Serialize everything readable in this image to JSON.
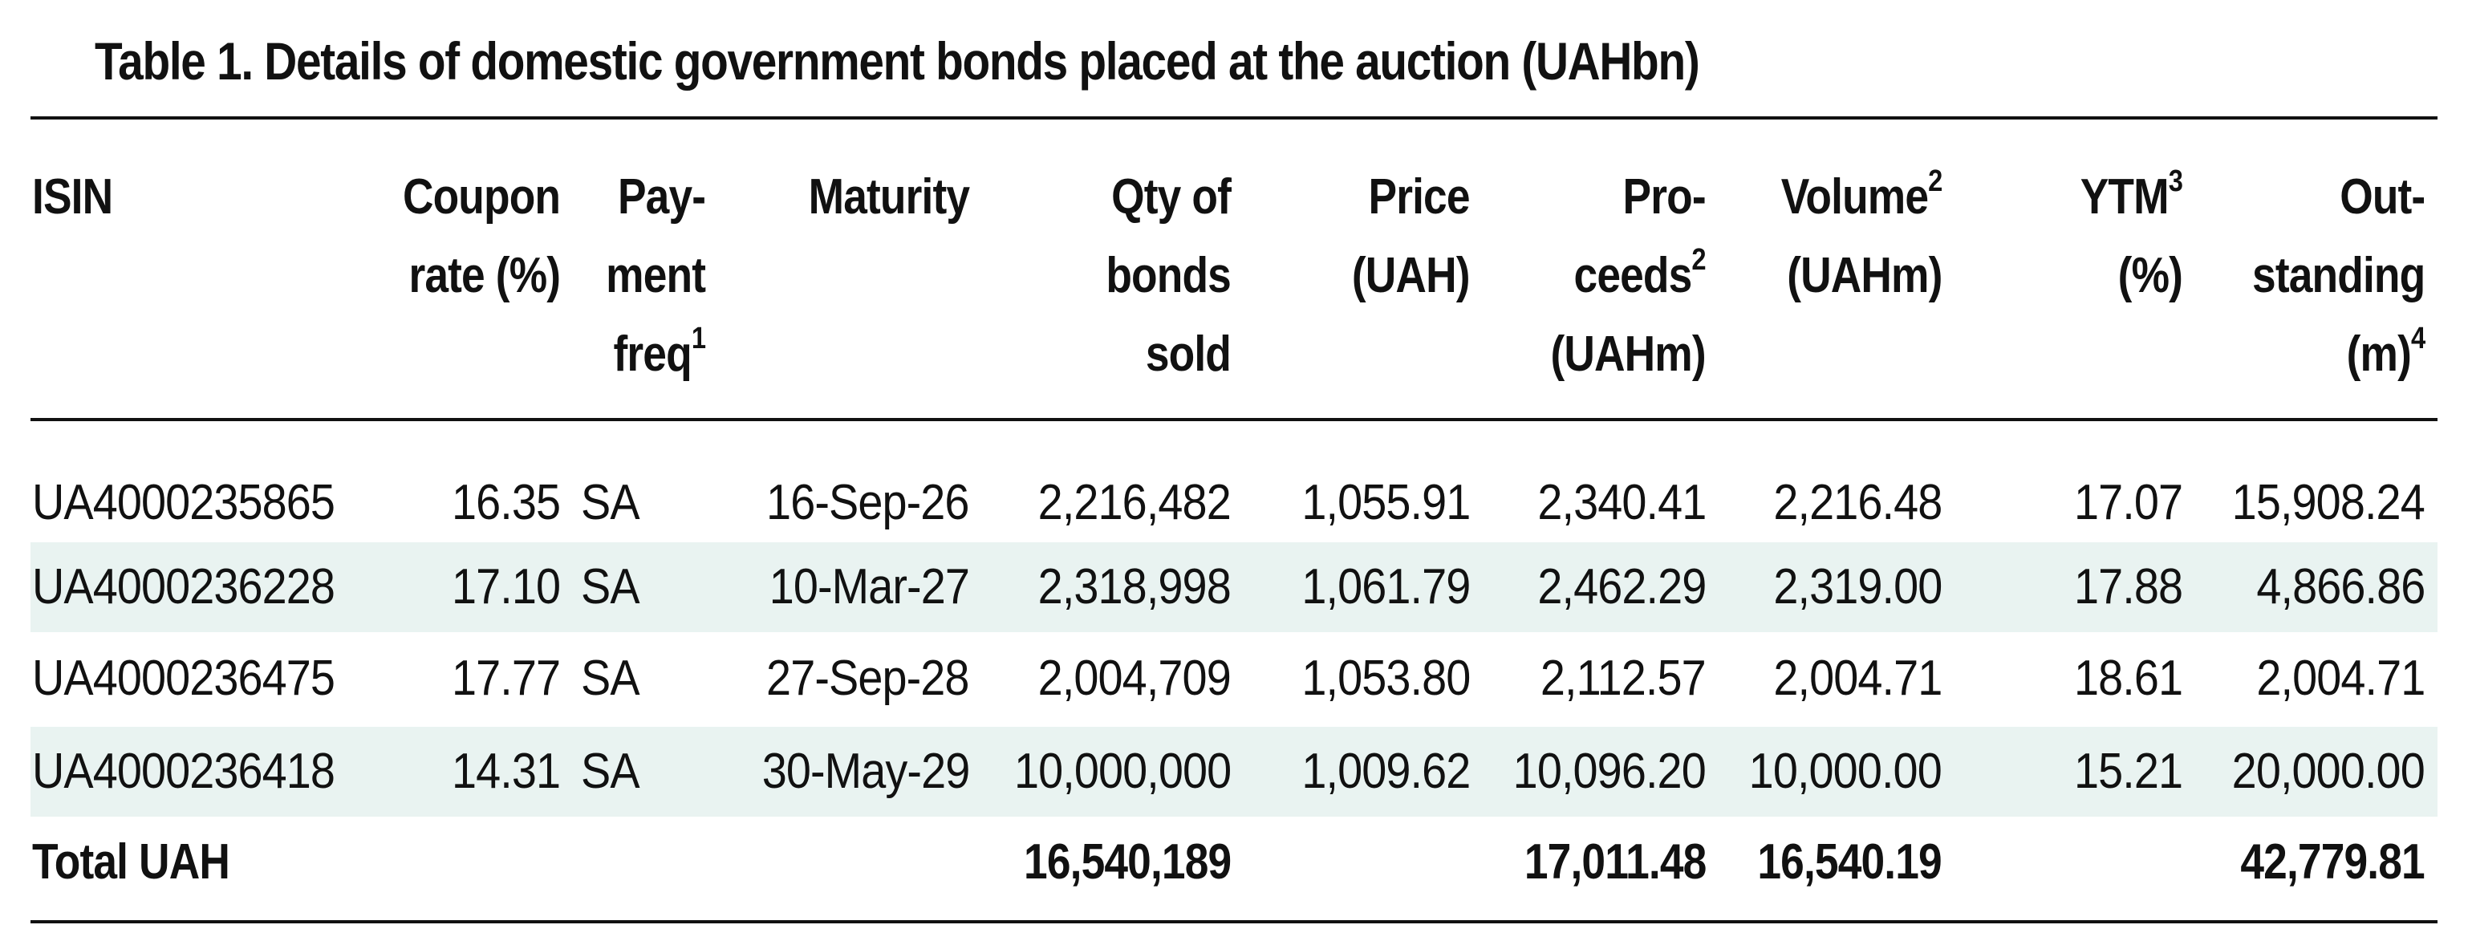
{
  "title": "Table 1. Details of domestic government bonds placed at the auction (UAHbn)",
  "headers": {
    "isin": [
      "ISIN"
    ],
    "coupon": [
      "Coupon",
      "rate (%)"
    ],
    "freq": [
      "Pay-",
      "ment",
      "freq",
      "1"
    ],
    "maturity": [
      "Maturity"
    ],
    "qty": [
      "Qty of",
      "bonds",
      "sold"
    ],
    "price": [
      "Price",
      "(UAH)"
    ],
    "proceeds": [
      "Pro-",
      "ceeds",
      "2",
      "(UAHm)"
    ],
    "volume": [
      "Volume",
      "2",
      "(UAHm)"
    ],
    "ytm": [
      "YTM",
      "3",
      "(%)"
    ],
    "outstanding": [
      "Out-",
      "standing",
      "(m)",
      "4"
    ]
  },
  "rows": [
    {
      "isin": "UA4000235865",
      "coupon": "16.35",
      "freq": "SA",
      "maturity": "16-Sep-26",
      "qty": "2,216,482",
      "price": "1,055.91",
      "proceeds": "2,340.41",
      "volume": "2,216.48",
      "ytm": "17.07",
      "outstanding": "15,908.24"
    },
    {
      "isin": "UA4000236228",
      "coupon": "17.10",
      "freq": "SA",
      "maturity": "10-Mar-27",
      "qty": "2,318,998",
      "price": "1,061.79",
      "proceeds": "2,462.29",
      "volume": "2,319.00",
      "ytm": "17.88",
      "outstanding": "4,866.86"
    },
    {
      "isin": "UA4000236475",
      "coupon": "17.77",
      "freq": "SA",
      "maturity": "27-Sep-28",
      "qty": "2,004,709",
      "price": "1,053.80",
      "proceeds": "2,112.57",
      "volume": "2,004.71",
      "ytm": "18.61",
      "outstanding": "2,004.71"
    },
    {
      "isin": "UA4000236418",
      "coupon": "14.31",
      "freq": "SA",
      "maturity": "30-May-29",
      "qty": "10,000,000",
      "price": "1,009.62",
      "proceeds": "10,096.20",
      "volume": "10,000.00",
      "ytm": "15.21",
      "outstanding": "20,000.00"
    }
  ],
  "total": {
    "label": "Total UAH",
    "qty": "16,540,189",
    "proceeds": "17,011.48",
    "volume": "16,540.19",
    "outstanding": "42,779.81"
  },
  "colors": {
    "row_shade": "#e9f3f1",
    "text": "#111111",
    "rule": "#111111"
  }
}
